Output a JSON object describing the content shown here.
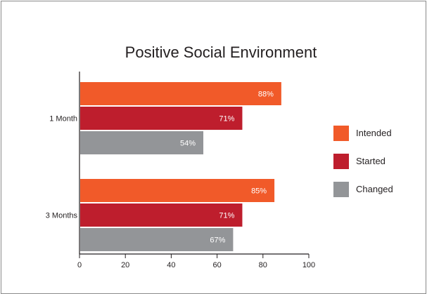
{
  "chart_data": {
    "type": "bar",
    "orientation": "horizontal",
    "title": "Positive Social Environment",
    "categories": [
      "1 Month",
      "3 Months"
    ],
    "series": [
      {
        "name": "Intended",
        "values": [
          88,
          85
        ],
        "labels": [
          "88%",
          "85%"
        ],
        "color": "#f15a29"
      },
      {
        "name": "Started",
        "values": [
          71,
          71
        ],
        "labels": [
          "71%",
          "71%"
        ],
        "color": "#be1e2d"
      },
      {
        "name": "Changed",
        "values": [
          54,
          67
        ],
        "labels": [
          "54%",
          "67%"
        ],
        "color": "#939598"
      }
    ],
    "xlim": [
      0,
      100
    ],
    "xticks": [
      "0",
      "20",
      "40",
      "60",
      "80",
      "100"
    ],
    "xlabel": "",
    "ylabel": "",
    "legend_position": "right",
    "grid": false
  }
}
